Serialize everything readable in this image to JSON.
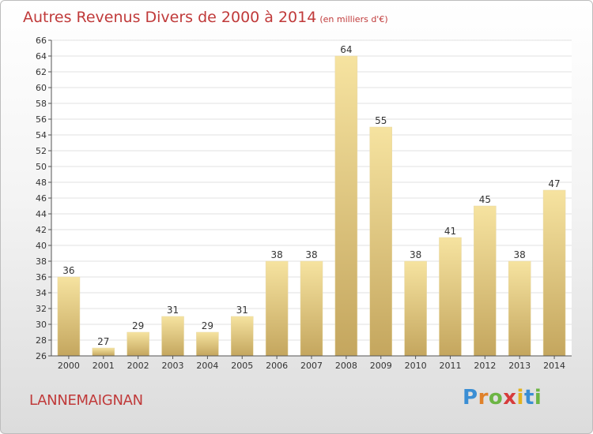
{
  "title": {
    "main": "Autres Revenus Divers de 2000 à 2014",
    "unit": "(en milliers d'€)"
  },
  "commune": "LANNEMAIGNAN",
  "logo": {
    "text": "Proxiti",
    "letters": [
      {
        "ch": "P",
        "color": "#3a8ed4"
      },
      {
        "ch": "r",
        "color": "#e0812a"
      },
      {
        "ch": "o",
        "color": "#6cb544"
      },
      {
        "ch": "x",
        "color": "#d63b3b"
      },
      {
        "ch": "i",
        "color": "#e3b320"
      },
      {
        "ch": "t",
        "color": "#3a8ed4"
      },
      {
        "ch": "i",
        "color": "#6cb544"
      }
    ]
  },
  "colors": {
    "title": "#c03a3a",
    "bar_top": "#f6e3a0",
    "bar_bottom": "#c4a65e",
    "grid": "#e2e2e2",
    "axis": "#555555"
  },
  "chart_data": {
    "type": "bar",
    "categories": [
      "2000",
      "2001",
      "2002",
      "2003",
      "2004",
      "2005",
      "2006",
      "2007",
      "2008",
      "2009",
      "2010",
      "2011",
      "2012",
      "2013",
      "2014"
    ],
    "values": [
      36,
      27,
      29,
      31,
      29,
      31,
      38,
      38,
      64,
      55,
      38,
      41,
      45,
      38,
      47
    ],
    "ylim": [
      26,
      66
    ],
    "ytick_step": 2,
    "grid": true,
    "data_labels": true
  }
}
